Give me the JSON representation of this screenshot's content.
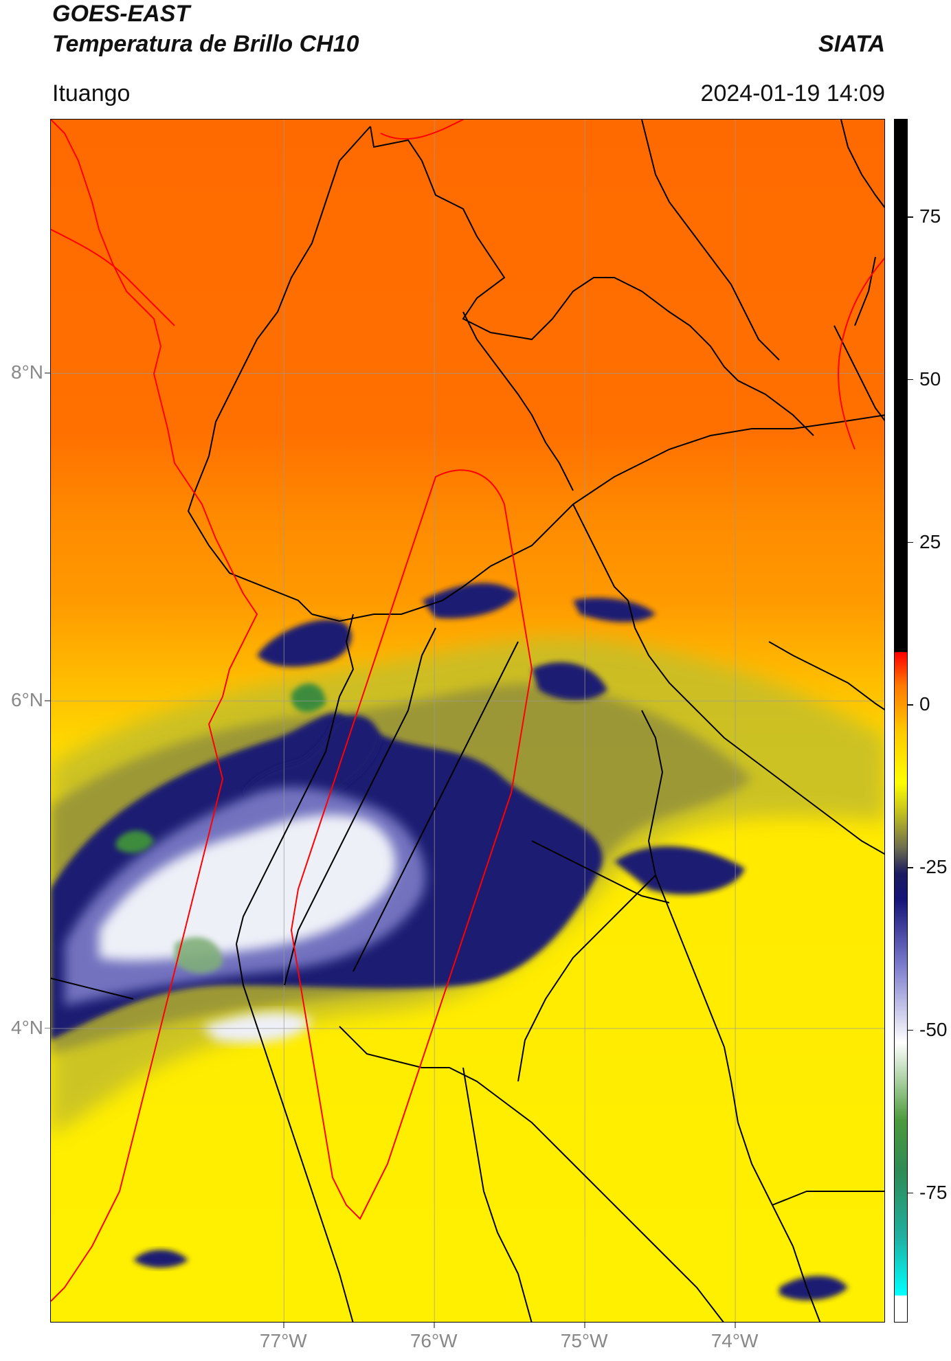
{
  "header": {
    "title_line1": "GOES-EAST",
    "title_line2": "Temperatura de Brillo CH10",
    "agency": "SIATA",
    "location": "Ituango",
    "datetime": "2024-01-19 14:09"
  },
  "map": {
    "lon_range": [
      -78.55,
      -73.0
    ],
    "lat_range": [
      2.2,
      9.55
    ],
    "lon_ticks": [
      {
        "value": -77,
        "label": "77°W"
      },
      {
        "value": -76,
        "label": "76°W"
      },
      {
        "value": -75,
        "label": "75°W"
      },
      {
        "value": -74,
        "label": "74°W"
      }
    ],
    "lat_ticks": [
      {
        "value": 8,
        "label": "8°N"
      },
      {
        "value": 6,
        "label": "6°N"
      },
      {
        "value": 4,
        "label": "4°N"
      }
    ],
    "gridlines": true,
    "colors": {
      "warm_north": "#ff6a00",
      "mid_orange": "#ff9a00",
      "yellow": "#ffe800",
      "olive": "#b5b040",
      "dark_blue": "#1a1a7a",
      "light_white": "#eef0f8",
      "green": "#3c8c3c",
      "admin_borders": "#000000",
      "coast_and_basin": "#ff0000"
    }
  },
  "colorbar": {
    "label": "",
    "range": [
      -95,
      90
    ],
    "ticks": [
      {
        "value": 75,
        "label": "75"
      },
      {
        "value": 50,
        "label": "50"
      },
      {
        "value": 25,
        "label": "25"
      },
      {
        "value": 0,
        "label": "0"
      },
      {
        "value": -25,
        "label": "-25"
      },
      {
        "value": -50,
        "label": "-50"
      },
      {
        "value": -75,
        "label": "-75"
      }
    ],
    "stops": [
      {
        "value": -95,
        "color": "#ffffff"
      },
      {
        "value": -91,
        "color": "#ffffff"
      },
      {
        "value": -90.9,
        "color": "#00ffff"
      },
      {
        "value": -82,
        "color": "#20b0a0"
      },
      {
        "value": -72,
        "color": "#2e8b57"
      },
      {
        "value": -64,
        "color": "#4c9a3c"
      },
      {
        "value": -58,
        "color": "#a8cfa0"
      },
      {
        "value": -52,
        "color": "#ffffff"
      },
      {
        "value": -40,
        "color": "#7a7acc"
      },
      {
        "value": -30,
        "color": "#141477"
      },
      {
        "value": -26,
        "color": "#1b1b60"
      },
      {
        "value": -22,
        "color": "#6e6e50"
      },
      {
        "value": -17,
        "color": "#bdbb22"
      },
      {
        "value": -12,
        "color": "#ffff00"
      },
      {
        "value": -4,
        "color": "#ffc800"
      },
      {
        "value": 3,
        "color": "#ff7800"
      },
      {
        "value": 8,
        "color": "#ff0000"
      },
      {
        "value": 8.1,
        "color": "#000000"
      },
      {
        "value": 90,
        "color": "#000000"
      }
    ]
  }
}
